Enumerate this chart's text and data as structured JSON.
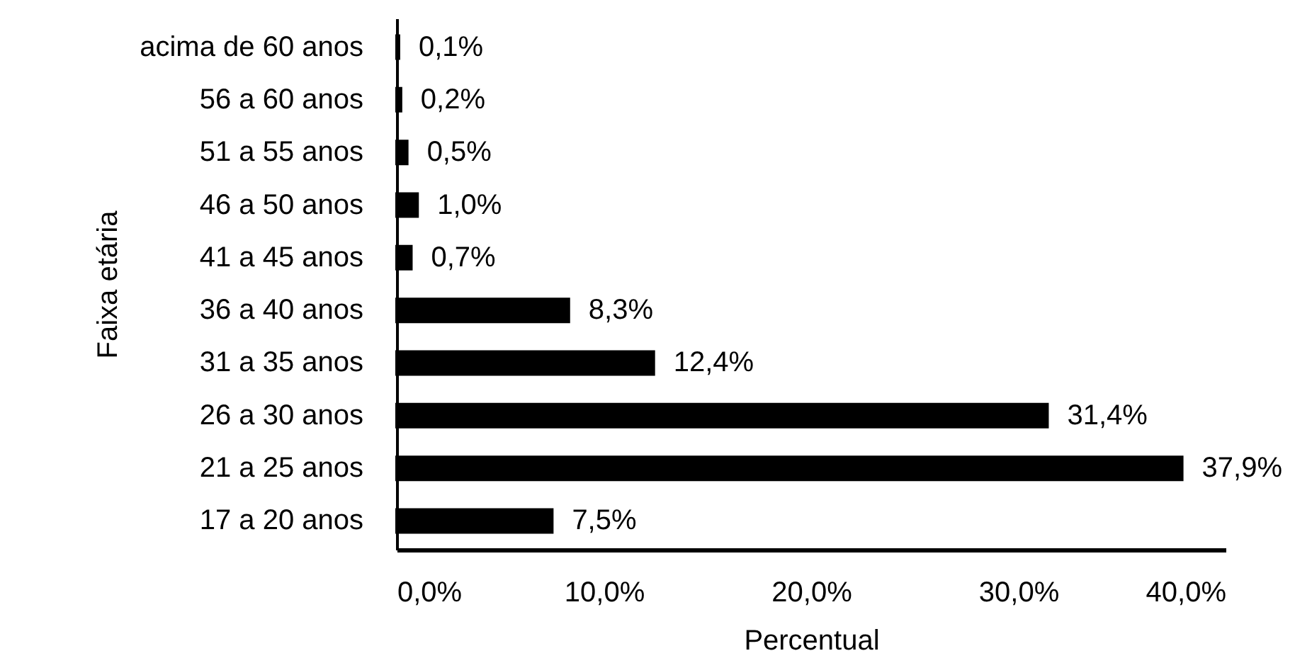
{
  "chart_data": {
    "type": "bar",
    "orientation": "horizontal",
    "categories": [
      "acima de 60 anos",
      "56 a 60 anos",
      "51 a 55 anos",
      "46 a 50 anos",
      "41 a 45 anos",
      "36 a 40 anos",
      "31 a 35 anos",
      "26 a 30 anos",
      "21 a 25 anos",
      "17 a 20 anos"
    ],
    "values": [
      0.1,
      0.2,
      0.5,
      1.0,
      0.7,
      8.3,
      12.4,
      31.4,
      37.9,
      7.5
    ],
    "value_labels": [
      "0,1%",
      "0,2%",
      "0,5%",
      "1,0%",
      "0,7%",
      "8,3%",
      "12,4%",
      "31,4%",
      "37,9%",
      "7,5%"
    ],
    "color": "#000000",
    "xlabel": "Percentual",
    "ylabel": "Faixa etária",
    "xlim": [
      0,
      40
    ],
    "xticks": [
      {
        "value": 0,
        "label": "0,0%"
      },
      {
        "value": 10,
        "label": "10,0%"
      },
      {
        "value": 20,
        "label": "20,0%"
      },
      {
        "value": 30,
        "label": "30,0%"
      },
      {
        "value": 40,
        "label": "40,0%"
      }
    ]
  }
}
